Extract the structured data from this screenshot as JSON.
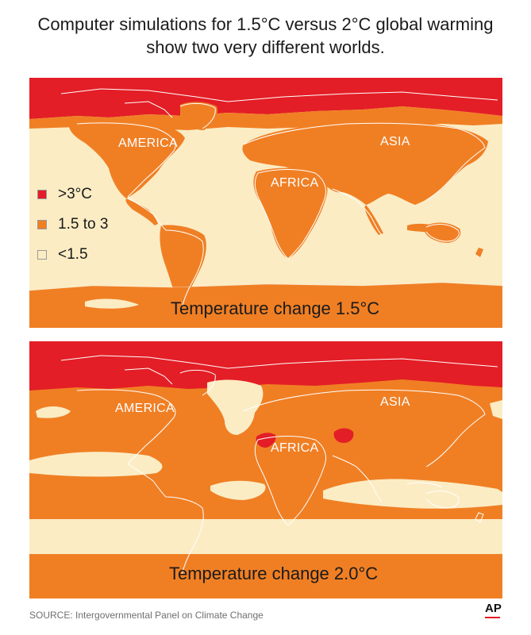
{
  "title": {
    "line1": "Computer simulations for 1.5°C versus 2°C global warming",
    "line2": "show two very different worlds."
  },
  "legend": {
    "items": [
      {
        "label": ">3°C",
        "color": "#e31e26"
      },
      {
        "label": "1.5 to 3",
        "color": "#f07f24"
      },
      {
        "label": "<1.5",
        "color": "#fbecc4"
      }
    ]
  },
  "map1": {
    "caption": "Temperature change 1.5°C",
    "labels": {
      "america": "AMERICA",
      "asia": "ASIA",
      "africa": "AFRICA"
    }
  },
  "map2": {
    "caption": "Temperature change 2.0°C",
    "labels": {
      "america": "AMERICA",
      "asia": "ASIA",
      "africa": "AFRICA"
    }
  },
  "colors": {
    "hot": "#e31e26",
    "warm": "#f07f24",
    "mild": "#fbecc4",
    "coast": "#ffffff"
  },
  "footer": {
    "source": "SOURCE: Intergovernmental Panel on Climate Change",
    "logo": "AP"
  }
}
